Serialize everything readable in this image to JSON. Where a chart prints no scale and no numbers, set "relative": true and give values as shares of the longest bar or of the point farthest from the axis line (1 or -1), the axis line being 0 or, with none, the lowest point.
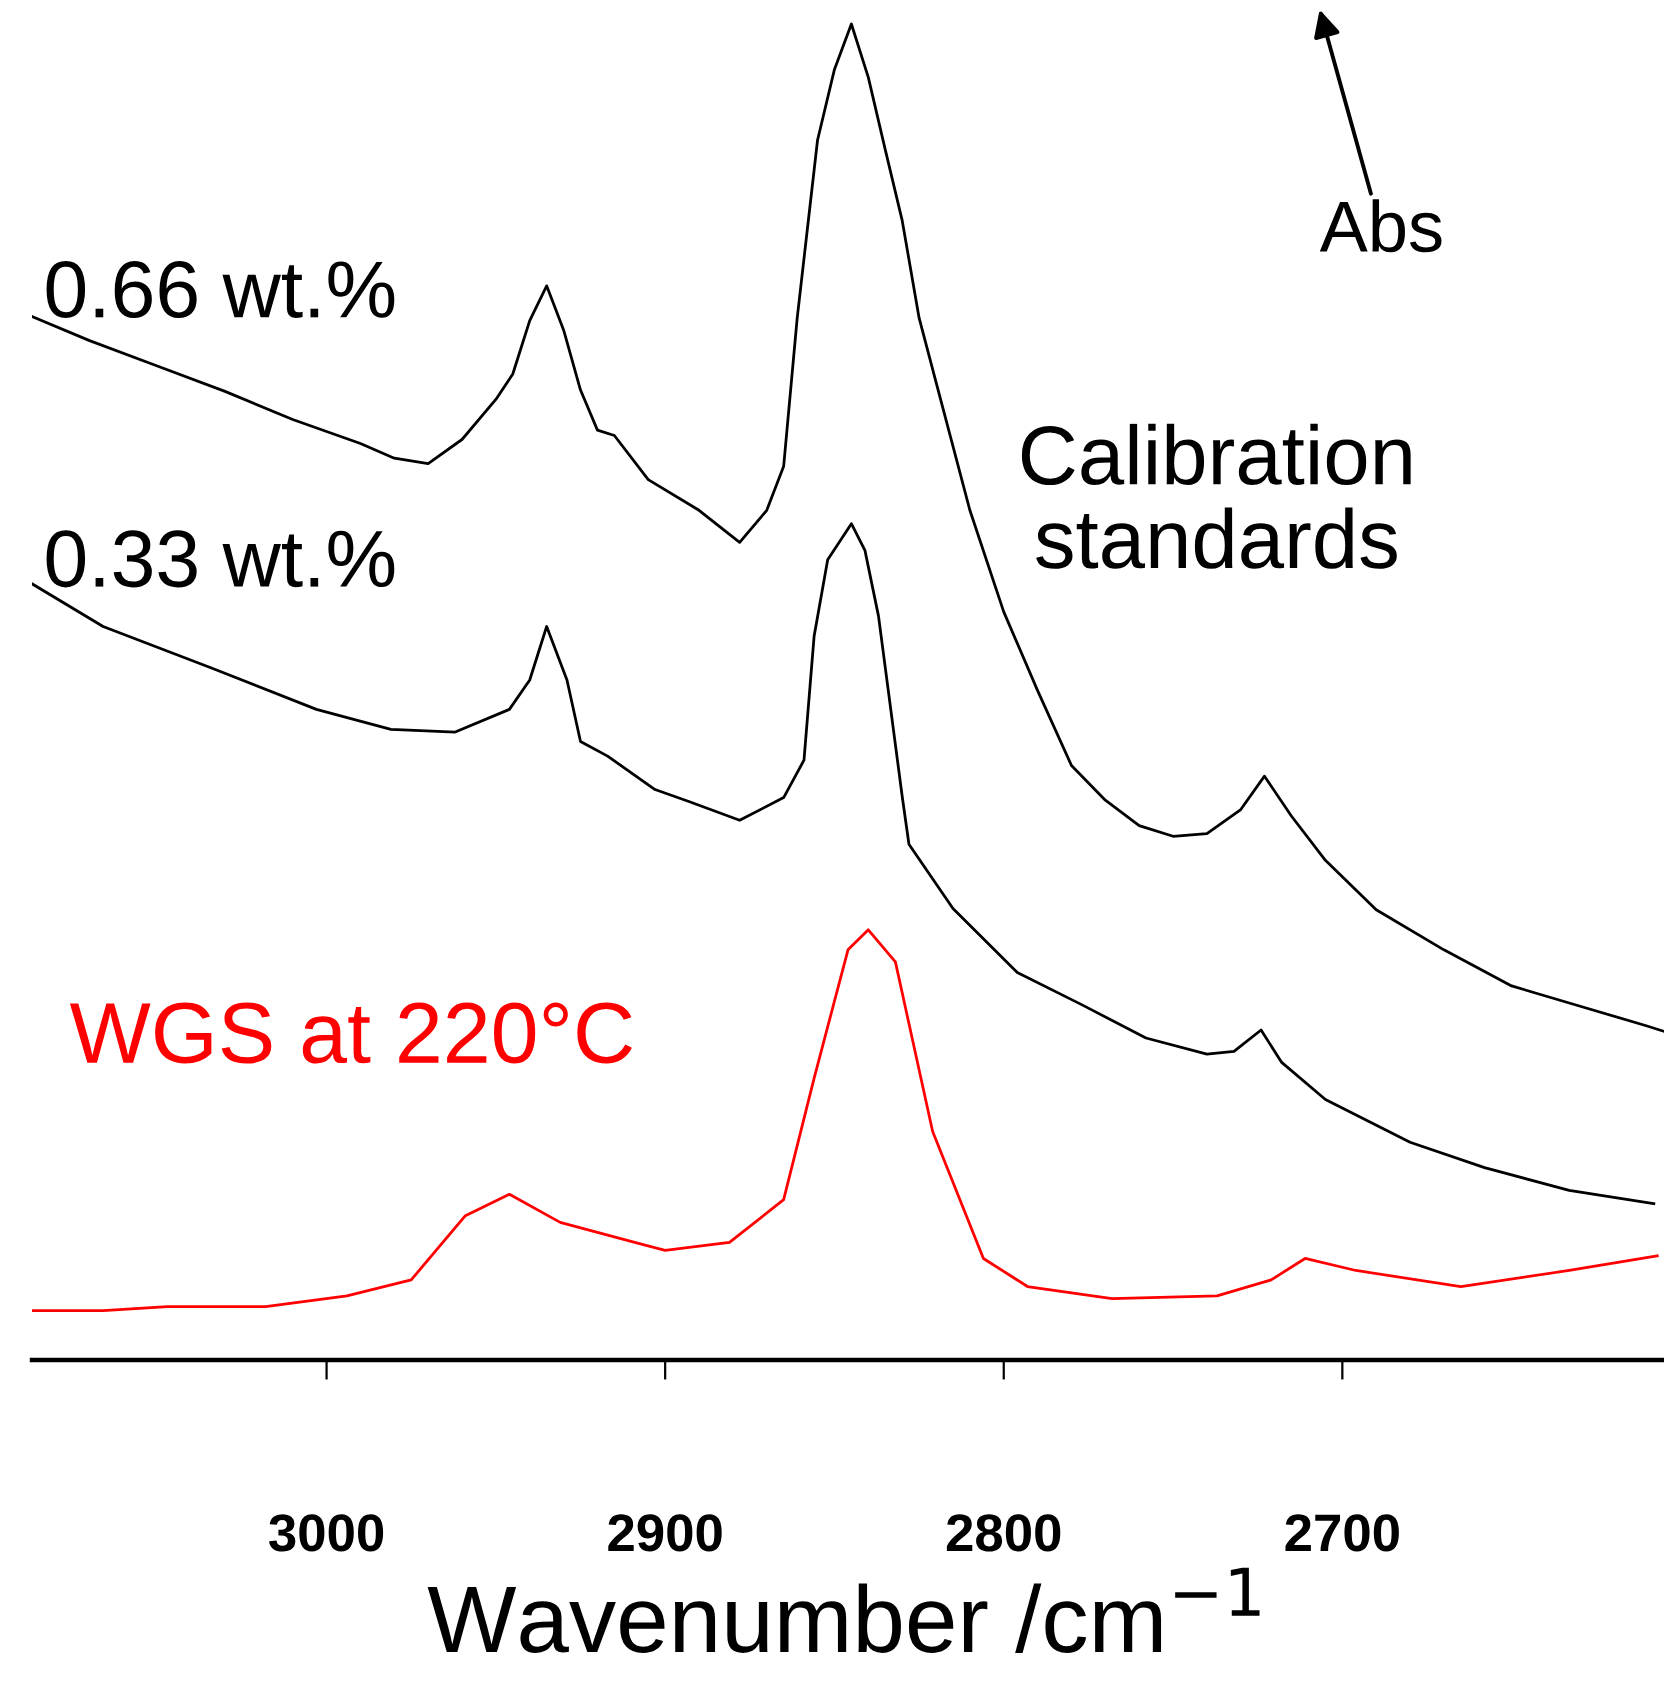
{
  "chart_data": {
    "type": "line",
    "relative": true,
    "xlabel": "Wavenumber /cm$^{−1}$",
    "xlim": [
      3087,
      2605
    ],
    "xticks": [
      3000,
      2900,
      2800,
      2700
    ],
    "grid": false,
    "legend": false,
    "tick_labels": "x",
    "marker": "none",
    "line_style": "solid",
    "annotations": [
      "Calibration\nstandards",
      "Abs"
    ],
    "series": [
      {
        "name": "0.66 wt.%",
        "color": "#000000",
        "x": [
          3087,
          3070,
          3050,
          3030,
          3010,
          2990,
          2980,
          2970,
          2960,
          2950,
          2945,
          2940,
          2935,
          2930,
          2925,
          2920,
          2915,
          2905,
          2890,
          2878,
          2870,
          2865,
          2861,
          2855,
          2850,
          2845,
          2840,
          2835,
          2830,
          2825,
          2820,
          2810,
          2800,
          2790,
          2780,
          2770,
          2760,
          2750,
          2740,
          2730,
          2723,
          2715,
          2705,
          2690,
          2670,
          2650,
          2630,
          2610,
          2605
        ],
        "values": [
          0.781,
          0.763,
          0.744,
          0.725,
          0.704,
          0.686,
          0.675,
          0.671,
          0.689,
          0.719,
          0.738,
          0.778,
          0.804,
          0.771,
          0.726,
          0.696,
          0.692,
          0.659,
          0.636,
          0.612,
          0.636,
          0.669,
          0.78,
          0.913,
          0.966,
          1.0,
          0.96,
          0.906,
          0.853,
          0.78,
          0.732,
          0.636,
          0.56,
          0.501,
          0.445,
          0.419,
          0.4,
          0.392,
          0.394,
          0.412,
          0.437,
          0.407,
          0.374,
          0.337,
          0.307,
          0.28,
          0.265,
          0.25,
          0.246
        ]
      },
      {
        "name": "0.33 wt.%",
        "color": "#000000",
        "x": [
          3087,
          3066,
          3034,
          3003,
          2981,
          2962,
          2946,
          2940,
          2935,
          2929,
          2925,
          2917,
          2903,
          2893,
          2878,
          2865,
          2859,
          2856,
          2852,
          2845,
          2841,
          2837,
          2830,
          2828,
          2815,
          2796,
          2777,
          2758,
          2740,
          2732,
          2724,
          2718,
          2705,
          2680,
          2658,
          2633,
          2608
        ],
        "values": [
          0.581,
          0.549,
          0.518,
          0.487,
          0.472,
          0.47,
          0.487,
          0.509,
          0.549,
          0.509,
          0.463,
          0.452,
          0.427,
          0.418,
          0.404,
          0.421,
          0.449,
          0.542,
          0.599,
          0.626,
          0.606,
          0.557,
          0.422,
          0.386,
          0.338,
          0.29,
          0.266,
          0.241,
          0.229,
          0.231,
          0.247,
          0.223,
          0.195,
          0.163,
          0.144,
          0.127,
          0.117
        ]
      },
      {
        "name": "WGS at 220°C",
        "color": "#ff0000",
        "x": [
          3087,
          3066,
          3047,
          3018,
          2994,
          2975,
          2959,
          2946,
          2931,
          2909,
          2900,
          2881,
          2865,
          2856,
          2846,
          2840,
          2832,
          2821,
          2806,
          2793,
          2768,
          2737,
          2721,
          2711,
          2696,
          2665,
          2633,
          2607
        ],
        "values": [
          0.037,
          0.037,
          0.04,
          0.04,
          0.048,
          0.06,
          0.108,
          0.124,
          0.103,
          0.088,
          0.082,
          0.088,
          0.12,
          0.211,
          0.307,
          0.322,
          0.298,
          0.171,
          0.076,
          0.055,
          0.046,
          0.048,
          0.06,
          0.076,
          0.067,
          0.055,
          0.067,
          0.078
        ]
      }
    ]
  }
}
